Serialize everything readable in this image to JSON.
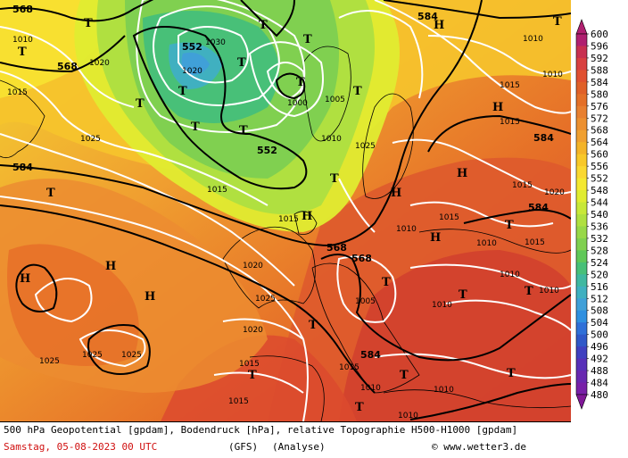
{
  "legend": {
    "ticks": [
      "600",
      "596",
      "592",
      "588",
      "584",
      "580",
      "576",
      "572",
      "568",
      "564",
      "560",
      "556",
      "552",
      "548",
      "544",
      "540",
      "536",
      "532",
      "528",
      "524",
      "520",
      "516",
      "512",
      "508",
      "504",
      "500",
      "496",
      "492",
      "488",
      "484",
      "480"
    ],
    "colors": [
      "#b02070",
      "#c83050",
      "#d84040",
      "#e05030",
      "#e06028",
      "#e47028",
      "#e88030",
      "#ec9030",
      "#f0a030",
      "#f4b428",
      "#f8c828",
      "#fad830",
      "#f4e830",
      "#e0ec30",
      "#c8e838",
      "#b0e040",
      "#98d848",
      "#80d050",
      "#60c858",
      "#48c078",
      "#40b8a0",
      "#40b0c0",
      "#40a0d8",
      "#3090e0",
      "#3070d8",
      "#3058c8",
      "#4040c0",
      "#5830b8",
      "#6828b0",
      "#7820a8",
      "#801898"
    ]
  },
  "map": {
    "geopotential_labels": [
      {
        "text": "568",
        "id": "gp-568-nw"
      },
      {
        "text": "568",
        "id": "gp-568-w"
      },
      {
        "text": "552",
        "id": "gp-552-n"
      },
      {
        "text": "552",
        "id": "gp-552-c"
      },
      {
        "text": "584",
        "id": "gp-584-w"
      },
      {
        "text": "584",
        "id": "gp-584-ne"
      },
      {
        "text": "584",
        "id": "gp-584-e"
      },
      {
        "text": "584",
        "id": "gp-584-e2"
      },
      {
        "text": "568",
        "id": "gp-568-c"
      },
      {
        "text": "568",
        "id": "gp-568-c2"
      },
      {
        "text": "584",
        "id": "gp-584-s"
      }
    ],
    "pressure_labels": [
      "1010",
      "1015",
      "1020",
      "1025",
      "1030",
      "1000",
      "1005"
    ],
    "markers": [
      "T",
      "H"
    ]
  },
  "footer": {
    "line1": "500 hPa Geopotential [gpdam], Bodendruck [hPa], relative Topographie H500-H1000 [gpdam]",
    "date": "Samstag, 05-08-2023  00 UTC",
    "model": "(GFS)",
    "type": "(Analyse)",
    "copyright": "© www.wetter3.de"
  }
}
